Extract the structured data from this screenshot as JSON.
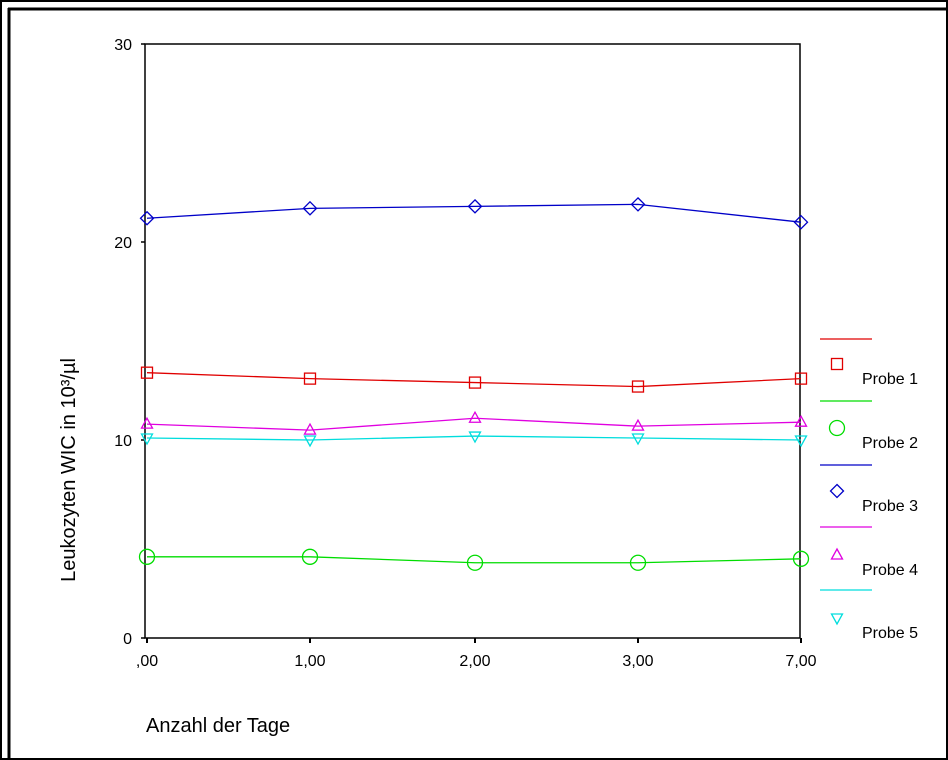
{
  "chart_data": {
    "type": "line",
    "xlabel": "Anzahl der Tage",
    "ylabel": "Leukozyten WIC in 10³/µl",
    "categories": [
      ",00",
      "1,00",
      "2,00",
      "3,00",
      "7,00"
    ],
    "ylim": [
      0,
      30
    ],
    "yticks": [
      "0",
      "10",
      "20",
      "30"
    ],
    "grid": false,
    "legend_position": "right",
    "series": [
      {
        "name": "Probe 1",
        "color": "#e00000",
        "marker": "square",
        "values": [
          13.4,
          13.1,
          12.9,
          12.7,
          13.1
        ]
      },
      {
        "name": "Probe 2",
        "color": "#00dd00",
        "marker": "circle",
        "values": [
          4.1,
          4.1,
          3.8,
          3.8,
          4.0
        ]
      },
      {
        "name": "Probe 3",
        "color": "#0000c8",
        "marker": "diamond",
        "values": [
          21.2,
          21.7,
          21.8,
          21.9,
          21.0
        ]
      },
      {
        "name": "Probe 4",
        "color": "#e000e0",
        "marker": "triangle-up",
        "values": [
          10.8,
          10.5,
          11.1,
          10.7,
          10.9
        ]
      },
      {
        "name": "Probe 5",
        "color": "#00dddd",
        "marker": "triangle-down",
        "values": [
          10.1,
          10.0,
          10.2,
          10.1,
          10.0
        ]
      }
    ]
  }
}
